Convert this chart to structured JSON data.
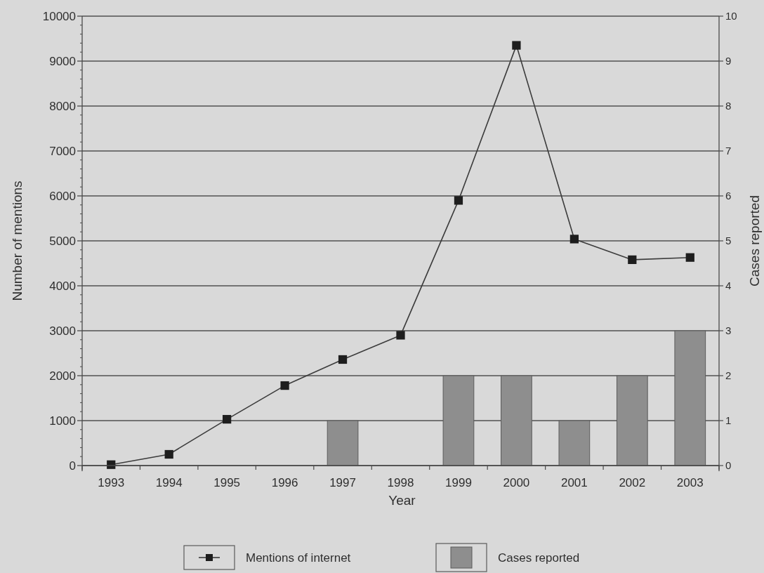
{
  "chart_data": {
    "type": "bar",
    "xlabel": "Year",
    "ylabel": "Number of mentions",
    "y2label": "Cases reported",
    "categories": [
      "1993",
      "1994",
      "1995",
      "1996",
      "1997",
      "1998",
      "1999",
      "2000",
      "2001",
      "2002",
      "2003"
    ],
    "series": [
      {
        "name": "Mentions of internet",
        "type": "line",
        "color": "#1e1e1e",
        "values": [
          20,
          250,
          1030,
          1780,
          2360,
          2900,
          5900,
          9350,
          5040,
          4580,
          4630
        ]
      },
      {
        "name": "Cases reported",
        "axis": "y2",
        "color": "#8e8e8e",
        "values": [
          0,
          0,
          0,
          0,
          1,
          0,
          2,
          2,
          1,
          2,
          3
        ]
      }
    ],
    "ylim": [
      0,
      10000
    ],
    "yticks": [
      0,
      {
        "value": 200,
        "label": null
      },
      {
        "value": 400,
        "label": null
      },
      {
        "value": 600,
        "label": null
      },
      {
        "value": 800,
        "label": null
      },
      1000,
      {
        "value": 1200,
        "label": null
      },
      {
        "value": 1400,
        "label": null
      },
      {
        "value": 1600,
        "label": null
      },
      {
        "value": 1800,
        "label": null
      },
      2000,
      {
        "value": 2200,
        "label": null
      },
      {
        "value": 2400,
        "label": null
      },
      {
        "value": 2600,
        "label": null
      },
      {
        "value": 2800,
        "label": null
      },
      3000,
      {
        "value": 3200,
        "label": null
      },
      {
        "value": 3400,
        "label": null
      },
      {
        "value": 3600,
        "label": null
      },
      {
        "value": 3800,
        "label": null
      },
      4000,
      {
        "value": 4200,
        "label": null
      },
      {
        "value": 4400,
        "label": null
      },
      {
        "value": 4600,
        "label": null
      },
      {
        "value": 4800,
        "label": null
      },
      5000,
      {
        "value": 5200,
        "label": null
      },
      {
        "value": 5400,
        "label": null
      },
      {
        "value": 5600,
        "label": null
      },
      {
        "value": 5800,
        "label": null
      },
      6000,
      {
        "value": 6200,
        "label": null
      },
      {
        "value": 6400,
        "label": null
      },
      {
        "value": 6600,
        "label": null
      },
      {
        "value": 6800,
        "label": null
      },
      7000,
      {
        "value": 7200,
        "label": null
      },
      {
        "value": 7400,
        "label": null
      },
      {
        "value": 7600,
        "label": null
      },
      {
        "value": 7800,
        "label": null
      },
      8000,
      {
        "value": 8200,
        "label": null
      },
      {
        "value": 8400,
        "label": null
      },
      {
        "value": 8600,
        "label": null
      },
      {
        "value": 8800,
        "label": null
      },
      9000,
      {
        "value": 9200,
        "label": null
      },
      {
        "value": 9400,
        "label": null
      },
      {
        "value": 9600,
        "label": null
      },
      {
        "value": 9800,
        "label": null
      },
      10000
    ],
    "y2lim": [
      0,
      10
    ],
    "y2ticks": [
      0,
      1,
      2,
      3,
      4,
      5,
      6,
      7,
      8,
      9,
      10
    ],
    "grid": "y",
    "legend": "bottom",
    "marker": "square"
  }
}
